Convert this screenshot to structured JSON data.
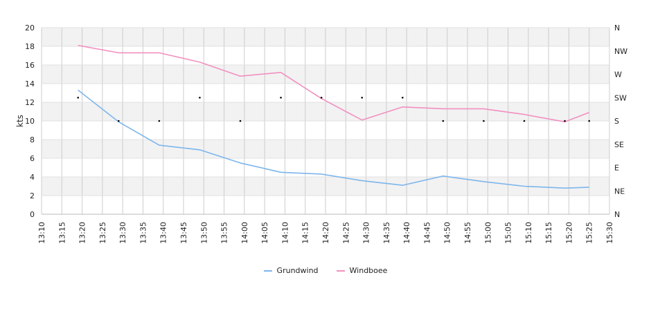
{
  "chart_data": {
    "type": "line",
    "ylabel": "kts",
    "ylim": [
      0,
      20
    ],
    "yticks": [
      "0",
      "2",
      "4",
      "6",
      "8",
      "10",
      "12",
      "14",
      "16",
      "18",
      "20"
    ],
    "y2ticks": [
      "N",
      "NE",
      "E",
      "SE",
      "S",
      "SW",
      "W",
      "NW",
      "N"
    ],
    "xlim": [
      "13:10",
      "15:30"
    ],
    "xticks": [
      "13:10",
      "13:15",
      "13:20",
      "13:25",
      "13:30",
      "13:35",
      "13:40",
      "13:45",
      "13:50",
      "13:55",
      "14:00",
      "14:05",
      "14:10",
      "14:15",
      "14:20",
      "14:25",
      "14:30",
      "14:35",
      "14:40",
      "14:45",
      "14:50",
      "14:55",
      "15:00",
      "15:05",
      "15:10",
      "15:15",
      "15:20",
      "15:25",
      "15:30"
    ],
    "x": [
      "13:19",
      "13:29",
      "13:39",
      "13:49",
      "13:59",
      "14:09",
      "14:19",
      "14:29",
      "14:39",
      "14:49",
      "14:59",
      "15:09",
      "15:19",
      "15:25"
    ],
    "series": [
      {
        "name": "Grundwind",
        "color": "#7cb5ec",
        "values": [
          13.3,
          9.9,
          7.4,
          6.9,
          5.5,
          4.5,
          4.3,
          3.6,
          3.1,
          4.1,
          3.5,
          3.0,
          2.8,
          2.9
        ]
      },
      {
        "name": "Windboee",
        "color": "#f28fbf",
        "values": [
          18.1,
          17.3,
          17.3,
          16.3,
          14.8,
          15.2,
          12.4,
          10.1,
          11.5,
          11.3,
          11.3,
          10.7,
          9.9,
          10.9
        ]
      }
    ],
    "direction": {
      "x": [
        "13:19",
        "13:29",
        "13:39",
        "13:49",
        "13:59",
        "14:09",
        "14:19",
        "14:29",
        "14:39",
        "14:49",
        "14:59",
        "15:09",
        "15:19",
        "15:25"
      ],
      "values": [
        "SW",
        "S",
        "S",
        "SW",
        "S",
        "SW",
        "SW",
        "SW",
        "SW",
        "S",
        "S",
        "S",
        "S",
        "S"
      ]
    },
    "grid": true,
    "legend_position": "bottom-center"
  }
}
